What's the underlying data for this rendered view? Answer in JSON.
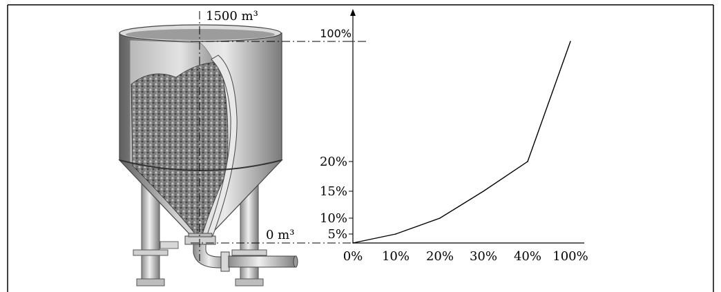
{
  "figure": {
    "capacity_label": "1500 m³",
    "empty_label": "0 m³",
    "colors": {
      "line": "#000000",
      "tank_dark": "#6e6e6e",
      "tank_light": "#d6d6d6",
      "fill_material": "#8a8a8a"
    }
  },
  "chart_data": {
    "type": "line",
    "x": [
      0,
      10,
      20,
      30,
      40,
      100
    ],
    "y": [
      0,
      5,
      10,
      15,
      20,
      100
    ],
    "x_tick_labels": [
      "0%",
      "10%",
      "20%",
      "30%",
      "40%",
      "100%"
    ],
    "y_tick_labels": [
      "5%",
      "10%",
      "15%",
      "20%",
      "100%"
    ],
    "y_tick_values": [
      5,
      10,
      15,
      20,
      100
    ],
    "title": "",
    "xlabel": "",
    "ylabel": ""
  }
}
